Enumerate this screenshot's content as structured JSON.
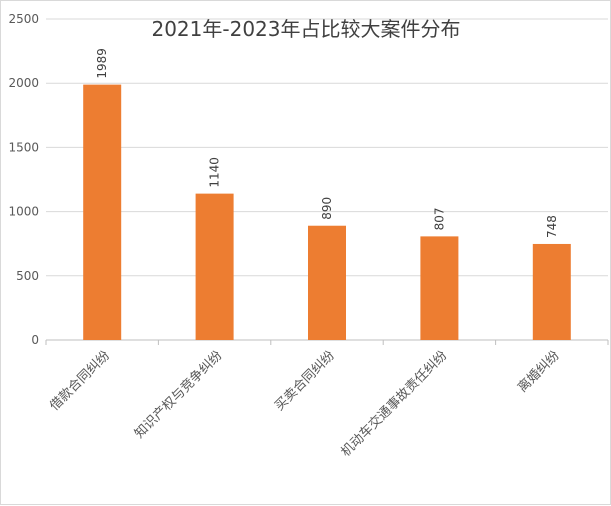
{
  "chart_data": {
    "type": "bar",
    "title": "2021年-2023年占比较大案件分布",
    "categories": [
      "借款合同纠纷",
      "知识产权与竞争纠纷",
      "买卖合同纠纷",
      "机动车交通事故责任纠纷",
      "离婚纠纷"
    ],
    "values": [
      1989,
      1140,
      890,
      807,
      748
    ],
    "data_labels": [
      "1989",
      "1140",
      "890",
      "807",
      "748"
    ],
    "y_ticks": [
      "0",
      "500",
      "1000",
      "1500",
      "2000",
      "2500"
    ],
    "ylim": [
      0,
      2500
    ],
    "grid": "horizontal",
    "legend": "none",
    "xlabel": "",
    "ylabel": "",
    "colors": {
      "bar": "#ED7D31",
      "grid": "#D9D9D9",
      "axis": "#BFBFBF",
      "text": "#595959"
    }
  }
}
